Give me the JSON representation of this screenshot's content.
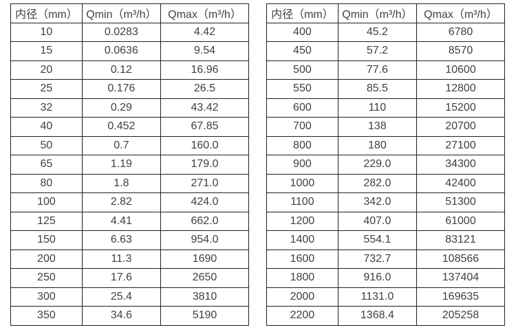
{
  "colors": {
    "background": "#ffffff",
    "table_border": "#1f1f1f",
    "text": "#3f3f3f"
  },
  "chart_data": [
    {
      "type": "table",
      "name": "flow-range-table-small-diameters",
      "headers": [
        "内径（mm）",
        "Qmin（m³/h）",
        "Qmax（m³/h）"
      ],
      "rows": [
        [
          "10",
          "0.0283",
          "4.42"
        ],
        [
          "15",
          "0.0636",
          "9.54"
        ],
        [
          "20",
          "0.12",
          "16.96"
        ],
        [
          "25",
          "0.176",
          "26.5"
        ],
        [
          "32",
          "0.29",
          "43.42"
        ],
        [
          "40",
          "0.452",
          "67.85"
        ],
        [
          "50",
          "0.7",
          "160.0"
        ],
        [
          "65",
          "1.19",
          "179.0"
        ],
        [
          "80",
          "1.8",
          "271.0"
        ],
        [
          "100",
          "2.82",
          "424.0"
        ],
        [
          "125",
          "4.41",
          "662.0"
        ],
        [
          "150",
          "6.63",
          "954.0"
        ],
        [
          "200",
          "11.3",
          "1690"
        ],
        [
          "250",
          "17.6",
          "2650"
        ],
        [
          "300",
          "25.4",
          "3810"
        ],
        [
          "350",
          "34.6",
          "5190"
        ]
      ]
    },
    {
      "type": "table",
      "name": "flow-range-table-large-diameters",
      "headers": [
        "内径（mm）",
        "Qmin（m³/h）",
        "Qmax（m³/h）"
      ],
      "rows": [
        [
          "400",
          "45.2",
          "6780"
        ],
        [
          "450",
          "57.2",
          "8570"
        ],
        [
          "500",
          "77.6",
          "10600"
        ],
        [
          "550",
          "85.5",
          "12800"
        ],
        [
          "600",
          "110",
          "15200"
        ],
        [
          "700",
          "138",
          "20700"
        ],
        [
          "800",
          "180",
          "27100"
        ],
        [
          "900",
          "229.0",
          "34300"
        ],
        [
          "1000",
          "282.0",
          "42400"
        ],
        [
          "1100",
          "342.0",
          "51300"
        ],
        [
          "1200",
          "407.0",
          "61000"
        ],
        [
          "1400",
          "554.1",
          "83121"
        ],
        [
          "1600",
          "732.7",
          "108566"
        ],
        [
          "1800",
          "916.0",
          "137404"
        ],
        [
          "2000",
          "1131.0",
          "169635"
        ],
        [
          "2200",
          "1368.4",
          "205258"
        ]
      ]
    }
  ]
}
